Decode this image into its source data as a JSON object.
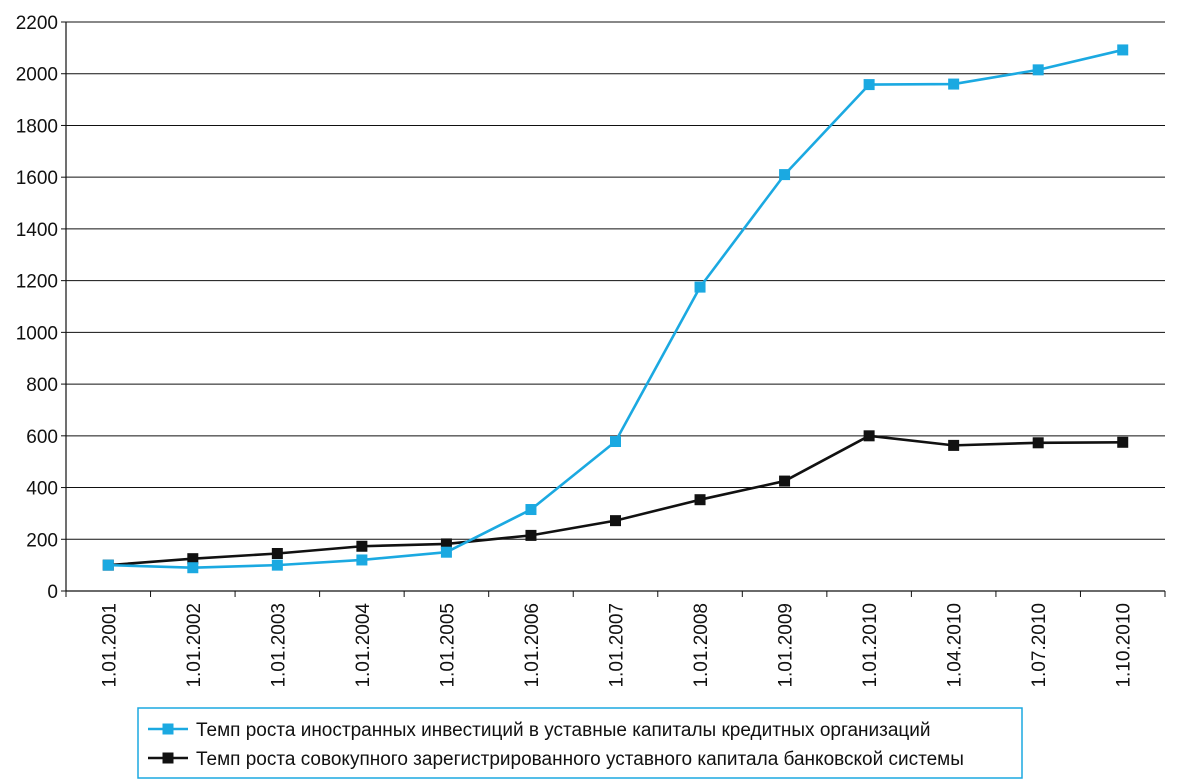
{
  "chart_data": {
    "type": "line",
    "title": "",
    "xlabel": "",
    "ylabel": "",
    "ylim": [
      0,
      2200
    ],
    "yticks": [
      "0",
      "200",
      "400",
      "600",
      "800",
      "1000",
      "1200",
      "1400",
      "1600",
      "1800",
      "2000",
      "2200"
    ],
    "grid": "horizontal",
    "legend_position": "bottom",
    "categories": [
      "1.01.2001",
      "1.01.2002",
      "1.01.2003",
      "1.01.2004",
      "1.01.2005",
      "1.01.2006",
      "1.01.2007",
      "1.01.2008",
      "1.01.2009",
      "1.01.2010",
      "1.04.2010",
      "1.07.2010",
      "1.10.2010"
    ],
    "series": [
      {
        "name": "Темп роста иностранных инвестиций в уставные капиталы кредитных организаций",
        "color": "#1ba9e1",
        "values": [
          100,
          90,
          100,
          120,
          150,
          315,
          578,
          1175,
          1610,
          1958,
          1960,
          2015,
          2092
        ]
      },
      {
        "name": "Темп роста совокупного зарегистрированного уставного капитала банковской системы",
        "color": "#111111",
        "values": [
          100,
          125,
          145,
          173,
          182,
          215,
          272,
          353,
          425,
          600,
          563,
          573,
          575
        ]
      }
    ]
  }
}
